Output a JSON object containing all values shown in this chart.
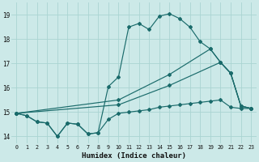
{
  "xlabel": "Humidex (Indice chaleur)",
  "xlim": [
    -0.5,
    23.5
  ],
  "ylim": [
    13.7,
    19.5
  ],
  "yticks": [
    14,
    15,
    16,
    17,
    18,
    19
  ],
  "xticks": [
    0,
    1,
    2,
    3,
    4,
    5,
    6,
    7,
    8,
    9,
    10,
    11,
    12,
    13,
    14,
    15,
    16,
    17,
    18,
    19,
    20,
    21,
    22,
    23
  ],
  "bg_color": "#cce9e8",
  "grid_color": "#aad4d2",
  "line_color": "#1a6b6b",
  "line1": {
    "x": [
      0,
      1,
      2,
      3,
      4,
      5,
      6,
      7,
      8,
      9,
      10,
      11,
      12,
      13,
      14,
      15,
      16,
      17,
      18,
      19,
      20,
      21,
      22,
      23
    ],
    "y": [
      14.95,
      14.85,
      14.6,
      14.55,
      14.0,
      14.55,
      14.5,
      14.1,
      14.15,
      14.7,
      14.95,
      15.0,
      15.05,
      15.1,
      15.2,
      15.25,
      15.3,
      15.35,
      15.4,
      15.45,
      15.5,
      15.2,
      15.15,
      15.15
    ]
  },
  "line2": {
    "x": [
      0,
      1,
      2,
      3,
      4,
      5,
      6,
      7,
      8,
      9,
      10,
      11,
      12,
      13,
      14,
      15,
      16,
      17,
      18,
      19,
      20,
      21,
      22,
      23
    ],
    "y": [
      14.95,
      14.85,
      14.6,
      14.55,
      14.0,
      14.55,
      14.5,
      14.1,
      14.15,
      16.05,
      16.45,
      18.5,
      18.65,
      18.4,
      18.95,
      19.05,
      18.85,
      18.5,
      17.9,
      17.6,
      17.05,
      16.6,
      15.25,
      15.15
    ]
  },
  "line3": {
    "x": [
      0,
      10,
      15,
      19,
      20,
      21,
      22,
      23
    ],
    "y": [
      14.95,
      15.5,
      16.55,
      17.6,
      17.05,
      16.6,
      15.25,
      15.15
    ]
  },
  "line4": {
    "x": [
      0,
      10,
      15,
      20,
      21,
      22,
      23
    ],
    "y": [
      14.95,
      15.3,
      16.1,
      17.05,
      16.6,
      15.25,
      15.15
    ]
  }
}
